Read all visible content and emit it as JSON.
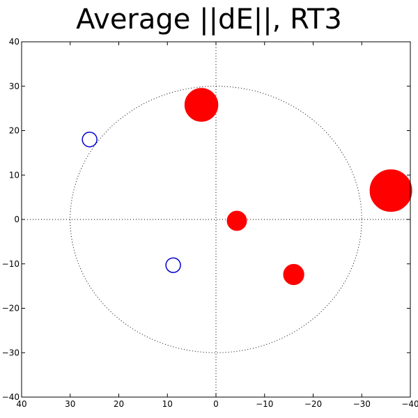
{
  "chart_data": {
    "type": "scatter",
    "title": "Average ||dE||, RT3",
    "xlabel": "",
    "ylabel": "",
    "xlim": [
      40,
      -40
    ],
    "ylim": [
      -40,
      40
    ],
    "x_ticks": [
      40,
      30,
      20,
      10,
      0,
      -10,
      -20,
      -30,
      -40
    ],
    "y_ticks": [
      40,
      30,
      20,
      10,
      0,
      -10,
      -20,
      -30,
      -40
    ],
    "x_tick_labels": [
      "40",
      "30",
      "20",
      "10",
      "0",
      "−10",
      "−20",
      "−30",
      "−40"
    ],
    "y_tick_labels": [
      "40",
      "30",
      "20",
      "10",
      "0",
      "−10",
      "−20",
      "−30",
      "−40"
    ],
    "reference_circle_radius": 30,
    "grid": false,
    "colors": {
      "filled": "#ff0000",
      "hollow": "#0000cc",
      "axes": "#000000"
    },
    "points": [
      {
        "x": -36,
        "y": 6.5,
        "radius": 4.3,
        "style": "filled"
      },
      {
        "x": 3,
        "y": 25.8,
        "radius": 3.4,
        "style": "filled"
      },
      {
        "x": -4.3,
        "y": -0.3,
        "radius": 2.0,
        "style": "filled"
      },
      {
        "x": -16,
        "y": -12.4,
        "radius": 2.1,
        "style": "filled"
      },
      {
        "x": 26,
        "y": 18,
        "radius": 1.5,
        "style": "hollow"
      },
      {
        "x": 8.8,
        "y": -10.3,
        "radius": 1.5,
        "style": "hollow"
      }
    ]
  }
}
